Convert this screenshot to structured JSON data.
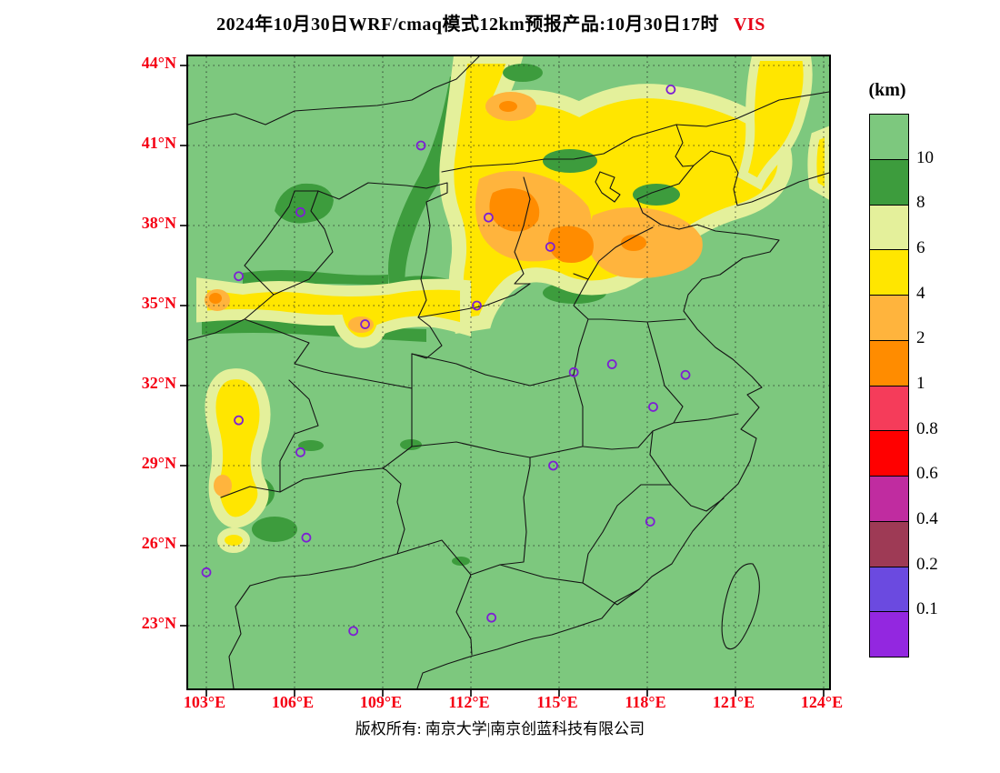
{
  "title": {
    "prefix": "2024年10月30日WRF/cmaq模式12km预报产品:10月30日17时",
    "variable": "VIS"
  },
  "axes": {
    "x_labels": [
      "103°E",
      "106°E",
      "109°E",
      "112°E",
      "115°E",
      "118°E",
      "121°E",
      "124°E"
    ],
    "x_lons": [
      103,
      106,
      109,
      112,
      115,
      118,
      121,
      124
    ],
    "y_labels": [
      "44°N",
      "41°N",
      "38°N",
      "35°N",
      "32°N",
      "29°N",
      "26°N",
      "23°N"
    ],
    "y_lats": [
      44,
      41,
      38,
      35,
      32,
      29,
      26,
      23
    ]
  },
  "legend": {
    "unit": "(km)",
    "labels": [
      "10",
      "8",
      "6",
      "4",
      "2",
      "1",
      "0.8",
      "0.6",
      "0.4",
      "0.2",
      "0.1"
    ],
    "colors": [
      "#7dc87e",
      "#3d9c3d",
      "#e4f09b",
      "#ffe600",
      "#ffb43d",
      "#ff8c00",
      "#f53c5a",
      "#ff0000",
      "#c02ca0",
      "#9e3a55",
      "#6b4ae0",
      "#9327e0"
    ]
  },
  "markers": {
    "symbol": "open-circle",
    "color": "#7d1fd3",
    "stations_lonlat": [
      [
        118.8,
        43.1
      ],
      [
        110.3,
        41.0
      ],
      [
        106.2,
        38.5
      ],
      [
        112.6,
        38.3
      ],
      [
        114.7,
        37.2
      ],
      [
        104.1,
        36.1
      ],
      [
        108.4,
        34.3
      ],
      [
        112.2,
        35.0
      ],
      [
        115.5,
        32.5
      ],
      [
        116.8,
        32.8
      ],
      [
        119.3,
        32.4
      ],
      [
        118.2,
        31.2
      ],
      [
        104.1,
        30.7
      ],
      [
        106.2,
        29.5
      ],
      [
        114.8,
        29.0
      ],
      [
        118.1,
        26.9
      ],
      [
        106.4,
        26.3
      ],
      [
        103.0,
        25.0
      ],
      [
        112.7,
        23.3
      ],
      [
        108.0,
        22.8
      ]
    ]
  },
  "footer": {
    "copyright": "版权所有: 南京大学|南京创蓝科技有限公司"
  },
  "chart_data": {
    "type": "heatmap",
    "title": "2024年10月30日WRF/cmaq模式12km预报产品:10月30日17时 VIS",
    "variable": "visibility",
    "unit": "km",
    "x": {
      "label": "Longitude",
      "ticks": [
        103,
        106,
        109,
        112,
        115,
        118,
        121,
        124
      ],
      "tick_format": "°E",
      "range": [
        102.4,
        124.2
      ]
    },
    "y": {
      "label": "Latitude",
      "ticks": [
        23,
        26,
        29,
        32,
        35,
        38,
        41,
        44
      ],
      "tick_format": "°N",
      "range": [
        20.7,
        44.3
      ]
    },
    "grid": "dashed graticule every 3 degrees",
    "legend_position": "right",
    "levels_km": [
      0.1,
      0.2,
      0.4,
      0.6,
      0.8,
      1,
      2,
      4,
      6,
      8,
      10
    ],
    "palette_low_to_high": [
      "#9327e0",
      "#6b4ae0",
      "#9e3a55",
      "#c02ca0",
      "#ff0000",
      "#f53c5a",
      "#ff8c00",
      "#ffb43d",
      "#ffe600",
      "#e4f09b",
      "#3d9c3d",
      "#7dc87e"
    ],
    "field_summary": [
      {
        "region": "most of domain including the south and coastal seas",
        "visibility_km": "> 10"
      },
      {
        "region": "North China Plain / Shanxi–Hebei–Shandong / Bohai rim (35–42°N, 110–123°E)",
        "visibility_km": "4–6 band with 2–4 lobes and 1–2 cores near 37–38.5°N, 112–116°E"
      },
      {
        "region": "Weihe valley band along ~34.5–35.5°N from 103°E to 110°E",
        "visibility_km": "4–6 with small 1–4 spots"
      },
      {
        "region": "western Sichuan Basin rim (103–105.5°E, 27.5–31.5°N)",
        "visibility_km": "4–6 with small 2–4 spots"
      },
      {
        "region": "northeast corner strip (121.5–123.5°E, 42–44°N)",
        "visibility_km": "4–6"
      },
      {
        "region": "scattered highland patches",
        "visibility_km": "8–10"
      }
    ],
    "station_markers_lonlat": [
      [
        118.8,
        43.1
      ],
      [
        110.3,
        41.0
      ],
      [
        106.2,
        38.5
      ],
      [
        112.6,
        38.3
      ],
      [
        114.7,
        37.2
      ],
      [
        104.1,
        36.1
      ],
      [
        108.4,
        34.3
      ],
      [
        112.2,
        35.0
      ],
      [
        115.5,
        32.5
      ],
      [
        116.8,
        32.8
      ],
      [
        119.3,
        32.4
      ],
      [
        118.2,
        31.2
      ],
      [
        104.1,
        30.7
      ],
      [
        106.2,
        29.5
      ],
      [
        114.8,
        29.0
      ],
      [
        118.1,
        26.9
      ],
      [
        106.4,
        26.3
      ],
      [
        103.0,
        25.0
      ],
      [
        112.7,
        23.3
      ],
      [
        108.0,
        22.8
      ]
    ]
  }
}
